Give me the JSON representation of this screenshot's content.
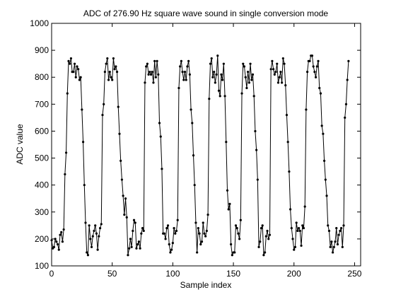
{
  "chart_data": {
    "type": "line",
    "title": "ADC of 276.90 Hz square wave sound in single conversion mode",
    "xlabel": "Sample index",
    "ylabel": "ADC value",
    "xlim": [
      0,
      255
    ],
    "ylim": [
      100,
      1000
    ],
    "xticks": [
      0,
      50,
      100,
      150,
      200,
      250
    ],
    "yticks": [
      100,
      200,
      300,
      400,
      500,
      600,
      700,
      800,
      900,
      1000
    ],
    "grid": false,
    "legend": false,
    "marker": "dot",
    "line_color": "#000000",
    "x_start": 0,
    "x_step": 1,
    "values": [
      195,
      165,
      170,
      200,
      190,
      180,
      160,
      215,
      225,
      190,
      235,
      440,
      520,
      740,
      860,
      850,
      870,
      820,
      820,
      850,
      800,
      840,
      830,
      790,
      800,
      680,
      560,
      400,
      260,
      150,
      140,
      250,
      200,
      170,
      210,
      230,
      250,
      220,
      160,
      210,
      240,
      255,
      660,
      700,
      820,
      850,
      870,
      790,
      820,
      800,
      790,
      870,
      830,
      840,
      820,
      690,
      590,
      490,
      420,
      360,
      290,
      350,
      280,
      140,
      165,
      200,
      170,
      230,
      270,
      260,
      165,
      180,
      190,
      165,
      220,
      240,
      230,
      780,
      840,
      850,
      810,
      820,
      810,
      820,
      780,
      860,
      800,
      860,
      810,
      630,
      580,
      460,
      220,
      220,
      200,
      240,
      250,
      180,
      150,
      160,
      185,
      240,
      220,
      230,
      270,
      760,
      840,
      860,
      820,
      790,
      820,
      790,
      840,
      860,
      810,
      680,
      630,
      510,
      400,
      260,
      150,
      240,
      220,
      180,
      190,
      260,
      220,
      210,
      230,
      290,
      720,
      850,
      870,
      800,
      820,
      780,
      810,
      880,
      750,
      730,
      810,
      790,
      850,
      730,
      560,
      380,
      310,
      330,
      180,
      140,
      150,
      150,
      250,
      240,
      220,
      200,
      270,
      740,
      850,
      840,
      800,
      760,
      820,
      780,
      850,
      790,
      810,
      730,
      600,
      530,
      420,
      170,
      190,
      240,
      250,
      140,
      150,
      210,
      230,
      200,
      215,
      830,
      860,
      830,
      810,
      820,
      850,
      780,
      800,
      820,
      780,
      870,
      850,
      770,
      660,
      560,
      450,
      310,
      240,
      200,
      160,
      170,
      260,
      230,
      240,
      230,
      175,
      250,
      240,
      320,
      680,
      820,
      860,
      860,
      880,
      880,
      840,
      820,
      800,
      840,
      860,
      760,
      740,
      620,
      590,
      490,
      420,
      360,
      250,
      230,
      170,
      190,
      150,
      170,
      190,
      240,
      180,
      215,
      230,
      240,
      170,
      250,
      650,
      700,
      790,
      860
    ]
  }
}
